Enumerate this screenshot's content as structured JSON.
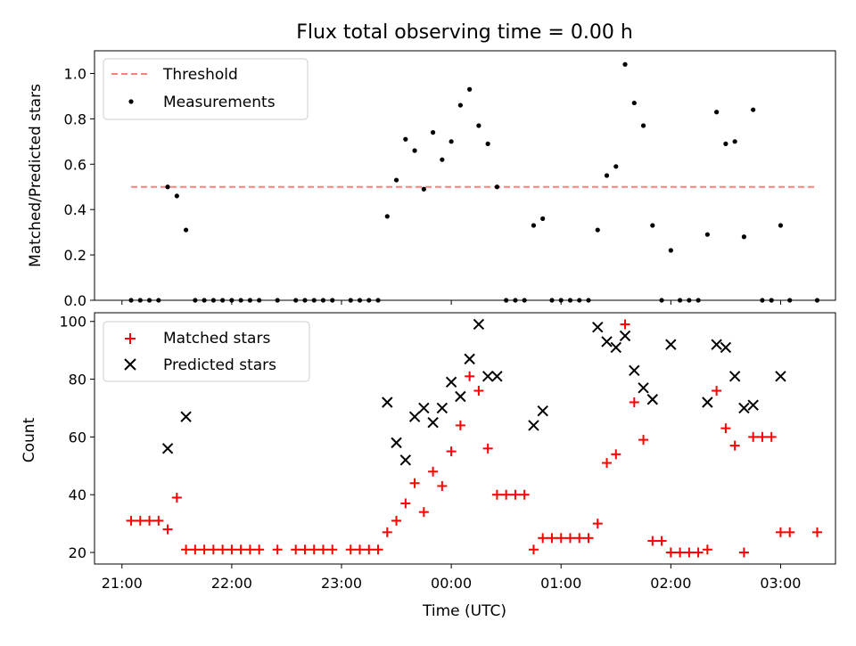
{
  "colors": {
    "threshold": "#ff7f7f",
    "measurement": "#000000",
    "matched": "#ff0000",
    "predicted": "#000000"
  },
  "chart_data": [
    {
      "type": "scatter",
      "title": "Flux total observing time = 0.00 h",
      "ylabel": "Matched/Predicted stars",
      "ylim": [
        0,
        1.1
      ],
      "yticks": [
        "0.0",
        "0.2",
        "0.4",
        "0.6",
        "0.8",
        "1.0"
      ],
      "xlim": [
        "20:45",
        "03:30"
      ],
      "legend_position": "top-left",
      "threshold": {
        "name": "Threshold",
        "value": 0.5,
        "x_range": [
          "21:05",
          "03:20"
        ]
      },
      "series": [
        {
          "name": "Measurements",
          "points": [
            [
              "21:05",
              0
            ],
            [
              "21:10",
              0
            ],
            [
              "21:15",
              0
            ],
            [
              "21:20",
              0
            ],
            [
              "21:25",
              0.5
            ],
            [
              "21:30",
              0.46
            ],
            [
              "21:35",
              0.31
            ],
            [
              "21:40",
              0
            ],
            [
              "21:45",
              0
            ],
            [
              "21:50",
              0
            ],
            [
              "21:55",
              0
            ],
            [
              "22:00",
              0
            ],
            [
              "22:05",
              0
            ],
            [
              "22:10",
              0
            ],
            [
              "22:15",
              0
            ],
            [
              "22:25",
              0
            ],
            [
              "22:35",
              0
            ],
            [
              "22:40",
              0
            ],
            [
              "22:45",
              0
            ],
            [
              "22:50",
              0
            ],
            [
              "22:55",
              0
            ],
            [
              "23:05",
              0
            ],
            [
              "23:10",
              0
            ],
            [
              "23:15",
              0
            ],
            [
              "23:20",
              0
            ],
            [
              "23:25",
              0.37
            ],
            [
              "23:30",
              0.53
            ],
            [
              "23:35",
              0.71
            ],
            [
              "23:40",
              0.66
            ],
            [
              "23:45",
              0.49
            ],
            [
              "23:50",
              0.74
            ],
            [
              "23:55",
              0.62
            ],
            [
              "00:00",
              0.7
            ],
            [
              "00:05",
              0.86
            ],
            [
              "00:10",
              0.93
            ],
            [
              "00:15",
              0.77
            ],
            [
              "00:20",
              0.69
            ],
            [
              "00:25",
              0.5
            ],
            [
              "00:30",
              0
            ],
            [
              "00:35",
              0
            ],
            [
              "00:40",
              0
            ],
            [
              "00:45",
              0.33
            ],
            [
              "00:50",
              0.36
            ],
            [
              "00:55",
              0
            ],
            [
              "01:00",
              0
            ],
            [
              "01:05",
              0
            ],
            [
              "01:10",
              0
            ],
            [
              "01:15",
              0
            ],
            [
              "01:20",
              0.31
            ],
            [
              "01:25",
              0.55
            ],
            [
              "01:30",
              0.59
            ],
            [
              "01:35",
              1.04
            ],
            [
              "01:40",
              0.87
            ],
            [
              "01:45",
              0.77
            ],
            [
              "01:50",
              0.33
            ],
            [
              "01:55",
              0
            ],
            [
              "02:00",
              0.22
            ],
            [
              "02:05",
              0
            ],
            [
              "02:10",
              0
            ],
            [
              "02:15",
              0
            ],
            [
              "02:20",
              0.29
            ],
            [
              "02:25",
              0.83
            ],
            [
              "02:30",
              0.69
            ],
            [
              "02:35",
              0.7
            ],
            [
              "02:40",
              0.28
            ],
            [
              "02:45",
              0.84
            ],
            [
              "02:50",
              0
            ],
            [
              "02:55",
              0
            ],
            [
              "03:00",
              0.33
            ],
            [
              "03:05",
              0
            ],
            [
              "03:20",
              0
            ]
          ]
        }
      ]
    },
    {
      "type": "scatter",
      "xlabel": "Time (UTC)",
      "ylabel": "Count",
      "ylim": [
        16,
        103
      ],
      "yticks": [
        "20",
        "40",
        "60",
        "80",
        "100"
      ],
      "xlim": [
        "20:45",
        "03:30"
      ],
      "xticks": [
        "21:00",
        "22:00",
        "23:00",
        "00:00",
        "01:00",
        "02:00",
        "03:00"
      ],
      "legend_position": "top-left",
      "series": [
        {
          "name": "Matched stars",
          "marker": "plus",
          "points": [
            [
              "21:05",
              31
            ],
            [
              "21:10",
              31
            ],
            [
              "21:15",
              31
            ],
            [
              "21:20",
              31
            ],
            [
              "21:25",
              28
            ],
            [
              "21:30",
              39
            ],
            [
              "21:35",
              21
            ],
            [
              "21:40",
              21
            ],
            [
              "21:45",
              21
            ],
            [
              "21:50",
              21
            ],
            [
              "21:55",
              21
            ],
            [
              "22:00",
              21
            ],
            [
              "22:05",
              21
            ],
            [
              "22:10",
              21
            ],
            [
              "22:15",
              21
            ],
            [
              "22:25",
              21
            ],
            [
              "22:35",
              21
            ],
            [
              "22:40",
              21
            ],
            [
              "22:45",
              21
            ],
            [
              "22:50",
              21
            ],
            [
              "22:55",
              21
            ],
            [
              "23:05",
              21
            ],
            [
              "23:10",
              21
            ],
            [
              "23:15",
              21
            ],
            [
              "23:20",
              21
            ],
            [
              "23:25",
              27
            ],
            [
              "23:30",
              31
            ],
            [
              "23:35",
              37
            ],
            [
              "23:40",
              44
            ],
            [
              "23:45",
              34
            ],
            [
              "23:50",
              48
            ],
            [
              "23:55",
              43
            ],
            [
              "00:00",
              55
            ],
            [
              "00:05",
              64
            ],
            [
              "00:10",
              81
            ],
            [
              "00:15",
              76
            ],
            [
              "00:20",
              56
            ],
            [
              "00:25",
              40
            ],
            [
              "00:30",
              40
            ],
            [
              "00:35",
              40
            ],
            [
              "00:40",
              40
            ],
            [
              "00:45",
              21
            ],
            [
              "00:50",
              25
            ],
            [
              "00:55",
              25
            ],
            [
              "01:00",
              25
            ],
            [
              "01:05",
              25
            ],
            [
              "01:10",
              25
            ],
            [
              "01:15",
              25
            ],
            [
              "01:20",
              30
            ],
            [
              "01:25",
              51
            ],
            [
              "01:30",
              54
            ],
            [
              "01:35",
              99
            ],
            [
              "01:40",
              72
            ],
            [
              "01:45",
              59
            ],
            [
              "01:50",
              24
            ],
            [
              "01:55",
              24
            ],
            [
              "02:00",
              20
            ],
            [
              "02:05",
              20
            ],
            [
              "02:10",
              20
            ],
            [
              "02:15",
              20
            ],
            [
              "02:20",
              21
            ],
            [
              "02:25",
              76
            ],
            [
              "02:30",
              63
            ],
            [
              "02:35",
              57
            ],
            [
              "02:40",
              20
            ],
            [
              "02:45",
              60
            ],
            [
              "02:50",
              60
            ],
            [
              "02:55",
              60
            ],
            [
              "03:00",
              27
            ],
            [
              "03:05",
              27
            ],
            [
              "03:20",
              27
            ]
          ]
        },
        {
          "name": "Predicted stars",
          "marker": "x",
          "points": [
            [
              "21:25",
              56
            ],
            [
              "21:35",
              67
            ],
            [
              "23:25",
              72
            ],
            [
              "23:30",
              58
            ],
            [
              "23:35",
              52
            ],
            [
              "23:40",
              67
            ],
            [
              "23:45",
              70
            ],
            [
              "23:50",
              65
            ],
            [
              "23:55",
              70
            ],
            [
              "00:00",
              79
            ],
            [
              "00:05",
              74
            ],
            [
              "00:10",
              87
            ],
            [
              "00:15",
              99
            ],
            [
              "00:20",
              81
            ],
            [
              "00:25",
              81
            ],
            [
              "00:45",
              64
            ],
            [
              "00:50",
              69
            ],
            [
              "01:20",
              98
            ],
            [
              "01:25",
              93
            ],
            [
              "01:30",
              91
            ],
            [
              "01:35",
              95
            ],
            [
              "01:40",
              83
            ],
            [
              "01:45",
              77
            ],
            [
              "01:50",
              73
            ],
            [
              "02:00",
              92
            ],
            [
              "02:20",
              72
            ],
            [
              "02:25",
              92
            ],
            [
              "02:30",
              91
            ],
            [
              "02:35",
              81
            ],
            [
              "02:40",
              70
            ],
            [
              "02:45",
              71
            ],
            [
              "03:00",
              81
            ]
          ]
        }
      ]
    }
  ]
}
